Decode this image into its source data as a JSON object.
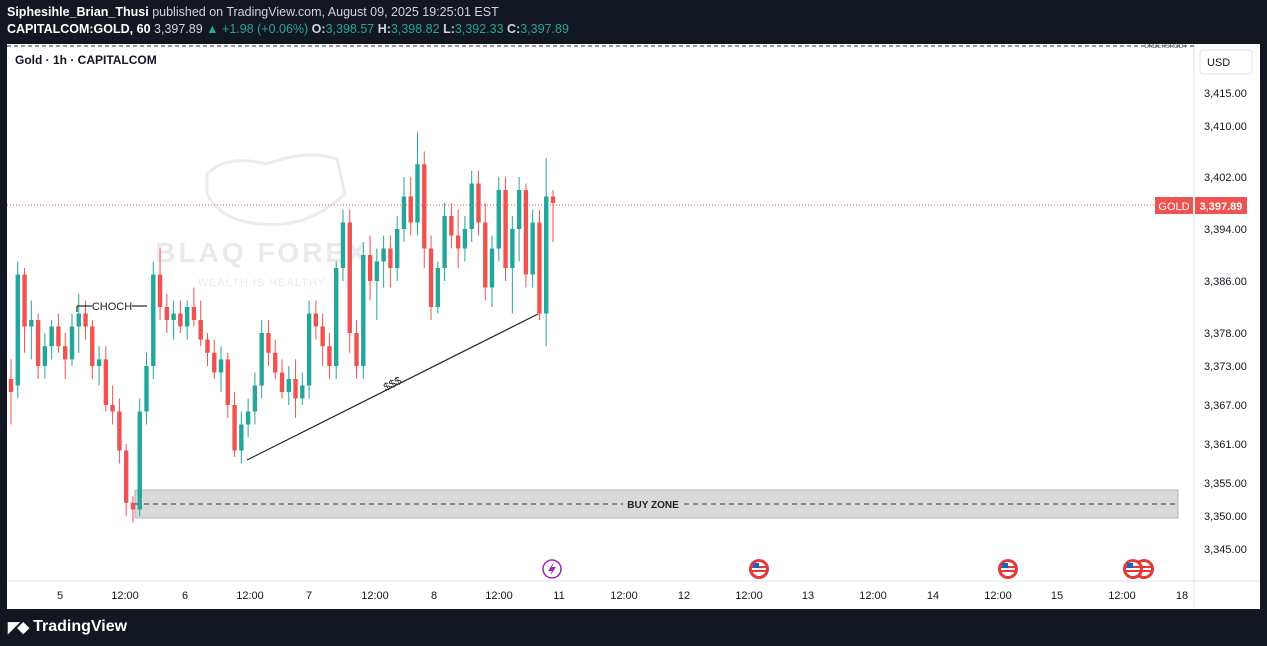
{
  "header": {
    "author": "Siphesihle_Brian_Thusi",
    "published": "published on TradingView.com, August 09, 2025 19:25:01 EST",
    "symbol": "CAPITALCOM:GOLD, 60",
    "last": "3,397.89",
    "change": "▲ +1.98 (+0.06%)",
    "o_label": "O:",
    "o_value": "3,398.57",
    "h_label": "H:",
    "h_value": "3,398.82",
    "l_label": "L:",
    "l_value": "3,392.33",
    "c_label": "C:",
    "c_value": "3,397.89"
  },
  "legend_title": "Gold · 1h · CAPITALCOM",
  "currency": "USD",
  "undershoot": "UNDERSHOOT",
  "price_tag": {
    "symbol": "GOLD",
    "value": "3,397.89"
  },
  "watermark": {
    "brand": "BLAQ FOREX",
    "tagline": "WEALTH IS HEALTHY"
  },
  "annotations": {
    "choch": "CHOCH",
    "sss": "$$$",
    "buy_zone": "BUY ZONE"
  },
  "footer": {
    "logo": "TradingView"
  },
  "colors": {
    "up": "#26a69a",
    "down": "#ef5350",
    "price_line": "#ef5350",
    "zone_fill": "#d9d9d9",
    "background": "#ffffff",
    "frame": "#131722"
  },
  "chart_data": {
    "type": "candlestick",
    "symbol": "CAPITALCOM:GOLD",
    "interval": "1h",
    "y_ticks": [
      3345,
      3350,
      3355,
      3361,
      3367,
      3373,
      3378,
      3386,
      3394,
      3402,
      3410,
      3415
    ],
    "y_tick_labels": [
      "3,345.00",
      "3,350.00",
      "3,355.00",
      "3,361.00",
      "3,367.00",
      "3,373.00",
      "3,378.00",
      "3,386.00",
      "3,394.00",
      "3,402.00",
      "3,410.00",
      "3,415.00"
    ],
    "x_tick_labels": [
      "5",
      "12:00",
      "6",
      "12:00",
      "7",
      "12:00",
      "8",
      "12:00",
      "11",
      "12:00",
      "12",
      "12:00",
      "13",
      "12:00",
      "14",
      "12:00",
      "15",
      "12:00",
      "18"
    ],
    "last_price": 3397.89,
    "candles_ohlc": [
      [
        3371,
        3374,
        3364,
        3369
      ],
      [
        3370,
        3389,
        3368,
        3387
      ],
      [
        3387,
        3388,
        3375,
        3379
      ],
      [
        3379,
        3383,
        3374,
        3380
      ],
      [
        3380,
        3381,
        3371,
        3373
      ],
      [
        3373,
        3378,
        3371,
        3376
      ],
      [
        3376,
        3380,
        3374,
        3379
      ],
      [
        3379,
        3381,
        3375,
        3376
      ],
      [
        3376,
        3378,
        3371,
        3374
      ],
      [
        3374,
        3381,
        3373,
        3379
      ],
      [
        3379,
        3384,
        3375,
        3381
      ],
      [
        3381,
        3383,
        3377,
        3379
      ],
      [
        3379,
        3380,
        3371,
        3373
      ],
      [
        3373,
        3376,
        3370,
        3374
      ],
      [
        3374,
        3376,
        3366,
        3367
      ],
      [
        3367,
        3370,
        3364,
        3366
      ],
      [
        3366,
        3368,
        3358,
        3360
      ],
      [
        3360,
        3361,
        3350,
        3352
      ],
      [
        3352,
        3353,
        3349,
        3351
      ],
      [
        3351,
        3368,
        3350,
        3366
      ],
      [
        3366,
        3375,
        3364,
        3373
      ],
      [
        3373,
        3389,
        3371,
        3387
      ],
      [
        3387,
        3391,
        3380,
        3382
      ],
      [
        3382,
        3384,
        3378,
        3380
      ],
      [
        3380,
        3383,
        3377,
        3381
      ],
      [
        3381,
        3383,
        3378,
        3379
      ],
      [
        3379,
        3383,
        3377,
        3382
      ],
      [
        3382,
        3385,
        3379,
        3380
      ],
      [
        3380,
        3383,
        3376,
        3377
      ],
      [
        3377,
        3378,
        3373,
        3375
      ],
      [
        3375,
        3377,
        3371,
        3372
      ],
      [
        3372,
        3376,
        3369,
        3374
      ],
      [
        3374,
        3375,
        3365,
        3367
      ],
      [
        3367,
        3369,
        3359,
        3360
      ],
      [
        3360,
        3366,
        3358,
        3364
      ],
      [
        3364,
        3368,
        3362,
        3366
      ],
      [
        3366,
        3372,
        3364,
        3370
      ],
      [
        3370,
        3380,
        3368,
        3378
      ],
      [
        3378,
        3380,
        3373,
        3375
      ],
      [
        3375,
        3377,
        3371,
        3372
      ],
      [
        3372,
        3374,
        3368,
        3369
      ],
      [
        3369,
        3373,
        3367,
        3371
      ],
      [
        3371,
        3374,
        3365,
        3368
      ],
      [
        3368,
        3372,
        3367,
        3370
      ],
      [
        3370,
        3383,
        3368,
        3381
      ],
      [
        3381,
        3383,
        3377,
        3379
      ],
      [
        3379,
        3381,
        3373,
        3376
      ],
      [
        3376,
        3378,
        3371,
        3373
      ],
      [
        3373,
        3389,
        3371,
        3388
      ],
      [
        3388,
        3397,
        3386,
        3395
      ],
      [
        3395,
        3397,
        3375,
        3378
      ],
      [
        3378,
        3380,
        3371,
        3373
      ],
      [
        3373,
        3392,
        3371,
        3390
      ],
      [
        3390,
        3393,
        3383,
        3386
      ],
      [
        3386,
        3391,
        3380,
        3389
      ],
      [
        3389,
        3393,
        3385,
        3391
      ],
      [
        3391,
        3393,
        3385,
        3388
      ],
      [
        3388,
        3396,
        3386,
        3394
      ],
      [
        3394,
        3402,
        3392,
        3399
      ],
      [
        3399,
        3402,
        3393,
        3395
      ],
      [
        3395,
        3409,
        3393,
        3404
      ],
      [
        3404,
        3406,
        3388,
        3391
      ],
      [
        3391,
        3393,
        3380,
        3382
      ],
      [
        3382,
        3389,
        3381,
        3388
      ],
      [
        3388,
        3398,
        3386,
        3396
      ],
      [
        3396,
        3398,
        3391,
        3393
      ],
      [
        3393,
        3397,
        3388,
        3391
      ],
      [
        3391,
        3396,
        3389,
        3394
      ],
      [
        3394,
        3403,
        3392,
        3401
      ],
      [
        3401,
        3403,
        3393,
        3395
      ],
      [
        3395,
        3398,
        3383,
        3385
      ],
      [
        3385,
        3393,
        3382,
        3391
      ],
      [
        3391,
        3402,
        3389,
        3400
      ],
      [
        3400,
        3402,
        3386,
        3388
      ],
      [
        3388,
        3396,
        3381,
        3394
      ],
      [
        3394,
        3402,
        3389,
        3400
      ],
      [
        3400,
        3401,
        3385,
        3387
      ],
      [
        3387,
        3397,
        3385,
        3395
      ],
      [
        3395,
        3397,
        3380,
        3381
      ],
      [
        3381,
        3405,
        3376,
        3399
      ],
      [
        3399,
        3400,
        3392,
        3398
      ]
    ]
  }
}
